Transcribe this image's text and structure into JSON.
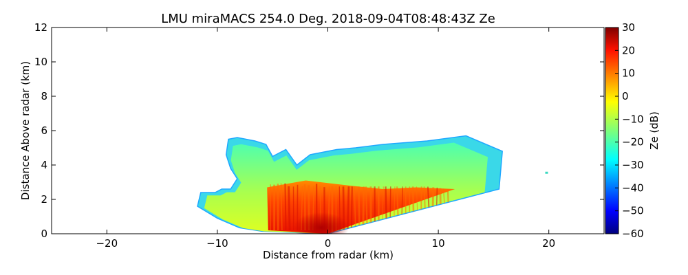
{
  "chart_data": {
    "type": "heatmap",
    "title": "LMU miraMACS 254.0 Deg. 2018-09-04T08:48:43Z  Ze",
    "xlabel": "Distance from radar (km)",
    "ylabel": "Distance Above radar  (km)",
    "xlim": [
      -25,
      25
    ],
    "ylim": [
      0,
      12
    ],
    "x_ticks": [
      -20,
      -10,
      0,
      10,
      20
    ],
    "y_ticks": [
      0,
      2,
      4,
      6,
      8,
      10,
      12
    ],
    "colorbar": {
      "label": "Ze (dB)",
      "range": [
        -60,
        30
      ],
      "ticks": [
        30,
        20,
        10,
        0,
        -10,
        -20,
        -30,
        -40,
        -50,
        -60
      ],
      "colormap": "jet"
    },
    "echo_region": {
      "outline_km": [
        [
          -11.8,
          1.6
        ],
        [
          -11.5,
          2.4
        ],
        [
          -10.2,
          2.4
        ],
        [
          -9.6,
          2.6
        ],
        [
          -8.8,
          2.6
        ],
        [
          -8.2,
          3.2
        ],
        [
          -8.8,
          3.8
        ],
        [
          -9.2,
          4.6
        ],
        [
          -9.0,
          5.5
        ],
        [
          -8.2,
          5.6
        ],
        [
          -6.6,
          5.4
        ],
        [
          -5.6,
          5.2
        ],
        [
          -5.0,
          4.5
        ],
        [
          -3.8,
          4.9
        ],
        [
          -2.8,
          4.0
        ],
        [
          -1.6,
          4.6
        ],
        [
          0.8,
          4.9
        ],
        [
          2.5,
          5.0
        ],
        [
          5.0,
          5.2
        ],
        [
          9.0,
          5.4
        ],
        [
          12.5,
          5.7
        ],
        [
          15.8,
          4.8
        ],
        [
          15.5,
          2.6
        ],
        [
          0.0,
          0.0
        ],
        [
          -6.0,
          0.15
        ],
        [
          -8.0,
          0.35
        ],
        [
          -10.0,
          0.9
        ]
      ],
      "core_outline_km": [
        [
          -5.4,
          0.2
        ],
        [
          -5.5,
          2.7
        ],
        [
          -2.0,
          3.1
        ],
        [
          2.0,
          2.8
        ],
        [
          5.0,
          2.6
        ],
        [
          8.0,
          2.7
        ],
        [
          11.5,
          2.6
        ],
        [
          0.0,
          0.0
        ]
      ],
      "zones": [
        {
          "zone": "outer edge",
          "value_db": -30
        },
        {
          "zone": "body",
          "value_db": -15
        },
        {
          "zone": "inner body",
          "value_db": -3
        },
        {
          "zone": "core",
          "value_db": 15
        },
        {
          "zone": "near radar",
          "value_db": 25
        }
      ]
    },
    "isolated_echo_km": [
      19.8,
      3.55
    ]
  }
}
